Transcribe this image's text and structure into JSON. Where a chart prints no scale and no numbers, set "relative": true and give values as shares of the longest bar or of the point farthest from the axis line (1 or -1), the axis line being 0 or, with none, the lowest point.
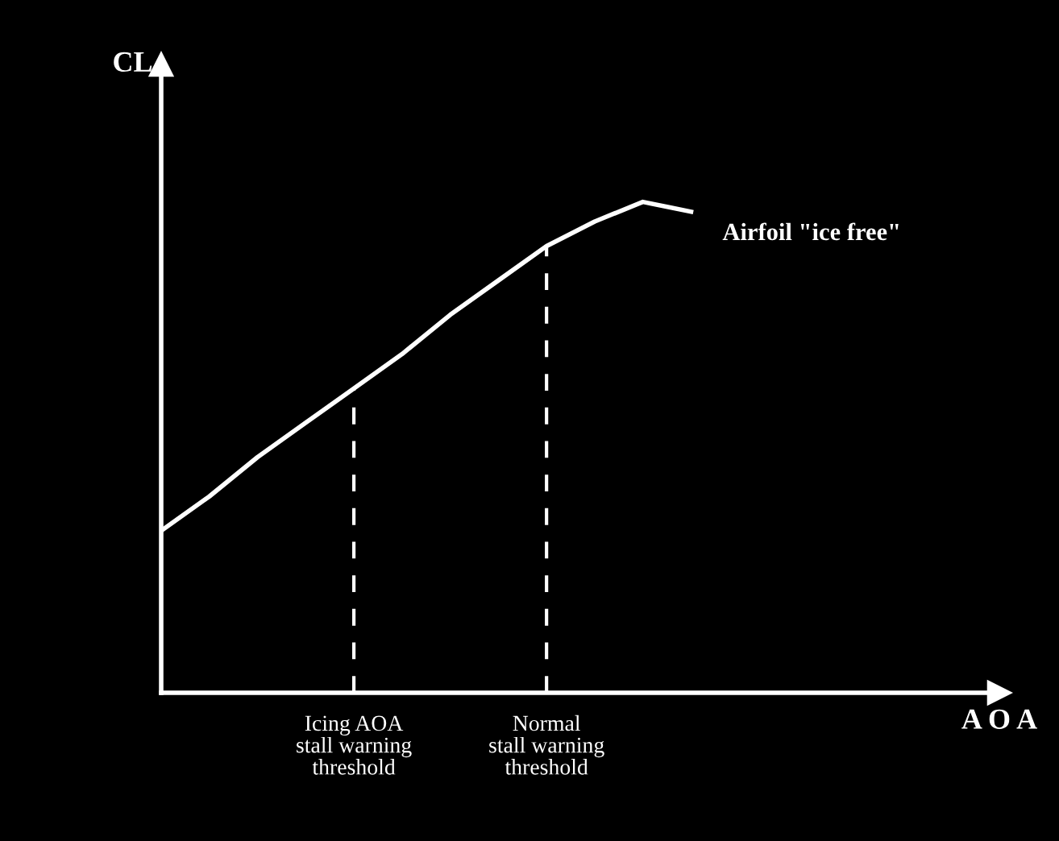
{
  "chart_data": {
    "type": "line",
    "relative": true,
    "ylabel": "CL",
    "categories": [
      null,
      null,
      null,
      null,
      "Icing AOA\nstall warning\nthreshold",
      null,
      null,
      null,
      "Normal\nstall warning\nthreshold",
      null,
      null,
      null
    ],
    "series": [
      {
        "color": "#ffffff",
        "values": [
          0.33,
          0.4,
          0.48,
          0.55,
          0.62,
          0.69,
          0.77,
          0.84,
          0.91,
          0.96,
          1.0,
          0.98
        ]
      }
    ],
    "ref_lines": [
      {
        "axis": "x",
        "value": "Icing AOA\nstall warning\nthreshold",
        "color": "#ffffff",
        "line_style": "dashed"
      },
      {
        "axis": "x",
        "value": "Normal\nstall warning\nthreshold",
        "color": "#ffffff",
        "line_style": "dashed"
      }
    ],
    "annotations": [
      "Airfoil \"ice free\"",
      "A O A"
    ]
  }
}
